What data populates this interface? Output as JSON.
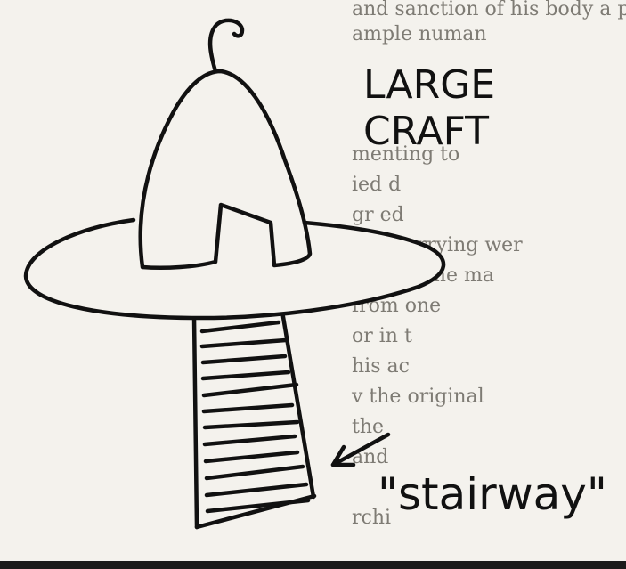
{
  "figure": {
    "label_large_craft_line1": "LARGE",
    "label_large_craft_line2": "CRAFT",
    "label_stairway": "\"stairway\""
  },
  "background_text": {
    "lines": [
      "and sanction of his body a pheno",
      "ample numan",
      "menting to",
      "ied d",
      "gr ed",
      "rs, scurrying wer",
      "of, and the ma",
      "from one",
      "or in t",
      "his ac",
      "v the original",
      "the",
      "and",
      "rchi"
    ]
  },
  "colors": {
    "ink": "#111111",
    "paper": "#f4f2ed",
    "faded_text": "#7e7b74"
  }
}
